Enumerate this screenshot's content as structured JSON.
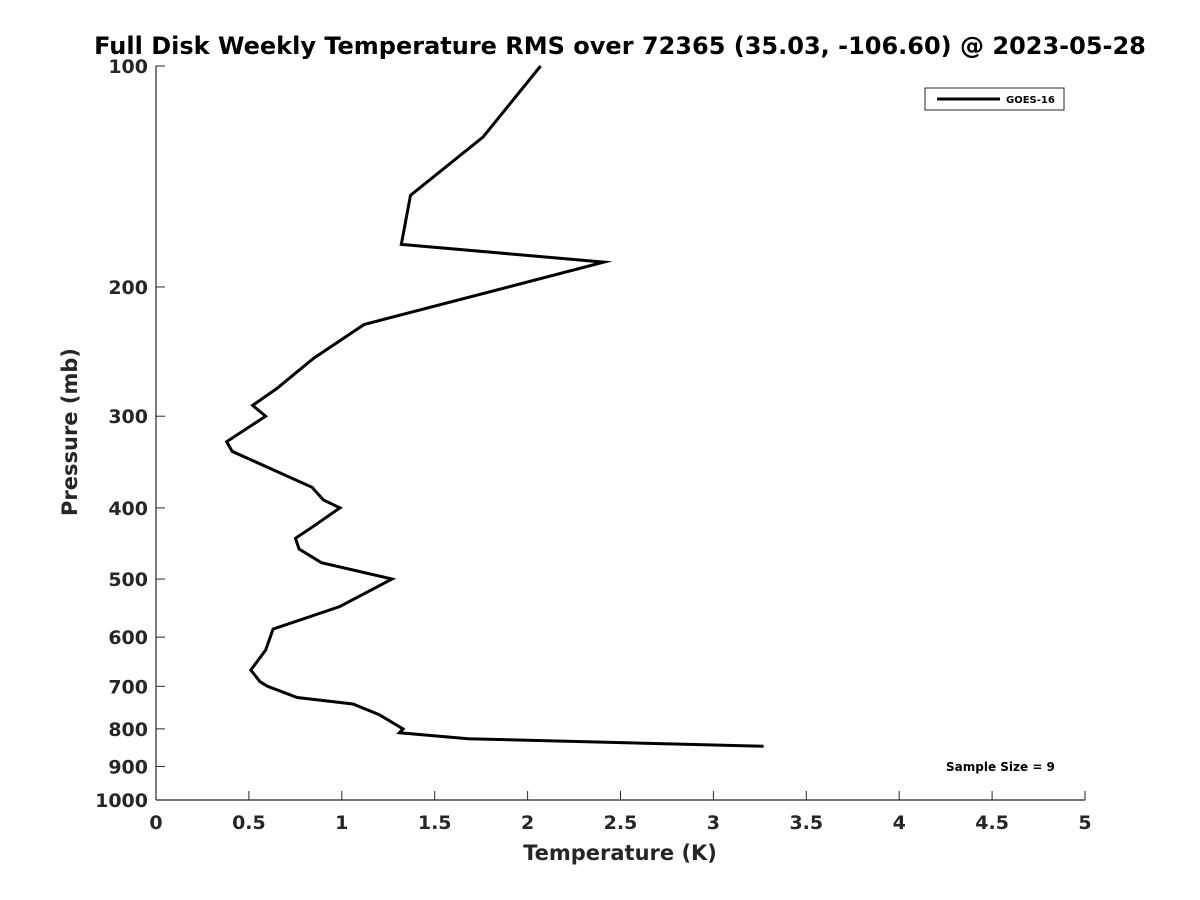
{
  "chart_data": {
    "type": "line",
    "title": "Full Disk Weekly Temperature RMS over 72365 (35.03, -106.60) @ 2023-05-28",
    "xlabel": "Temperature (K)",
    "ylabel": "Pressure (mb)",
    "xlim": [
      0,
      5
    ],
    "ylim": [
      1000,
      100
    ],
    "yscale": "log",
    "y_reversed": true,
    "xticks": [
      0,
      0.5,
      1,
      1.5,
      2,
      2.5,
      3,
      3.5,
      4,
      4.5,
      5
    ],
    "xtick_labels": [
      "0",
      "0.5",
      "1",
      "1.5",
      "2",
      "2.5",
      "3",
      "3.5",
      "4",
      "4.5",
      "5"
    ],
    "yticks": [
      100,
      200,
      300,
      400,
      500,
      600,
      700,
      800,
      900,
      1000
    ],
    "ytick_labels": [
      "100",
      "200",
      "300",
      "400",
      "500",
      "600",
      "700",
      "800",
      "900",
      "1000"
    ],
    "grid": false,
    "legend_position": "top-right",
    "series": [
      {
        "name": "GOES-16",
        "color": "#000000",
        "x": [
          2.07,
          1.76,
          1.37,
          1.32,
          2.41,
          1.12,
          0.85,
          0.65,
          0.52,
          0.59,
          0.38,
          0.41,
          0.84,
          0.9,
          0.99,
          0.84,
          0.75,
          0.77,
          0.89,
          1.27,
          0.99,
          0.63,
          0.59,
          0.51,
          0.56,
          0.6,
          0.76,
          1.06,
          1.2,
          1.33,
          1.31,
          1.68,
          3.27
        ],
        "y": [
          100,
          125,
          150,
          175,
          185,
          225,
          250,
          275,
          290,
          300,
          325,
          335,
          375,
          390,
          400,
          425,
          440,
          455,
          475,
          500,
          545,
          585,
          625,
          665,
          690,
          700,
          725,
          740,
          765,
          800,
          810,
          825,
          845
        ]
      }
    ],
    "annotations": [
      "Sample Size = 9"
    ]
  }
}
